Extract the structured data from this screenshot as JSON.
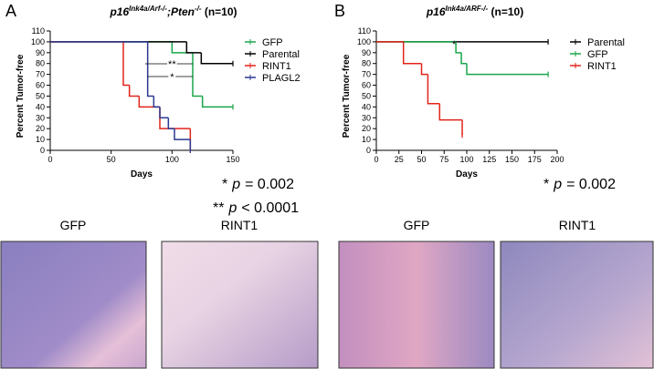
{
  "chart_data": [
    {
      "type": "step",
      "panel_label": "A",
      "title": [
        "p16",
        "Ink4a/Arf-/-",
        ";Pten",
        "-/-",
        " (n=10)"
      ],
      "x_label": "Days",
      "y_label": "Percent Tumor-free",
      "xlim": [
        0,
        150
      ],
      "xticks": [
        0,
        50,
        100,
        150
      ],
      "ylim": [
        0,
        110
      ],
      "yticks": [
        0,
        10,
        20,
        30,
        40,
        50,
        60,
        70,
        80,
        90,
        100,
        110
      ],
      "legend": "right",
      "series": [
        {
          "name": "GFP",
          "color": "#1aa64a",
          "x": [
            0,
            100,
            117,
            125,
            150
          ],
          "values": [
            100,
            90,
            50,
            40,
            40
          ]
        },
        {
          "name": "Parental",
          "color": "#000000",
          "x": [
            0,
            112,
            124,
            150
          ],
          "values": [
            100,
            90,
            80,
            80
          ]
        },
        {
          "name": "RINT1",
          "color": "#e2231a",
          "x": [
            0,
            60,
            65,
            73,
            90,
            115
          ],
          "values": [
            100,
            60,
            50,
            40,
            20,
            0
          ]
        },
        {
          "name": "PLAGL2",
          "color": "#2b3990",
          "x": [
            0,
            80,
            85,
            90,
            97,
            102,
            115
          ],
          "values": [
            100,
            50,
            40,
            30,
            20,
            10,
            0
          ]
        }
      ],
      "annotations": [
        "**",
        "*"
      ],
      "pvalues": [
        [
          "*",
          "p",
          "= 0.002"
        ],
        [
          "**",
          "p",
          "< 0.0001"
        ]
      ]
    },
    {
      "type": "step",
      "panel_label": "B",
      "title": [
        "p16",
        "Ink4a/ARF-/-",
        " (n=10)"
      ],
      "x_label": "Days",
      "y_label": "Percent Tumor-free",
      "xlim": [
        0,
        200
      ],
      "xticks": [
        0,
        25,
        50,
        75,
        100,
        125,
        150,
        175,
        200
      ],
      "ylim": [
        0,
        110
      ],
      "yticks": [
        0,
        10,
        20,
        30,
        40,
        50,
        60,
        70,
        80,
        90,
        100,
        110
      ],
      "legend": "right",
      "series": [
        {
          "name": "Parental",
          "color": "#000000",
          "x": [
            0,
            190
          ],
          "values": [
            100,
            100
          ]
        },
        {
          "name": "GFP",
          "color": "#1aa64a",
          "x": [
            0,
            88,
            94,
            100,
            190
          ],
          "values": [
            100,
            90,
            80,
            70,
            70
          ]
        },
        {
          "name": "RINT1",
          "color": "#e2231a",
          "x": [
            0,
            30,
            50,
            57,
            70,
            95
          ],
          "values": [
            100,
            80,
            70,
            43,
            28,
            14
          ]
        }
      ],
      "annotations": [
        "*"
      ],
      "pvalues": [
        [
          "*",
          "p",
          "= 0.002"
        ]
      ]
    }
  ],
  "images": [
    "GFP",
    "RINT1",
    "GFP",
    "RINT1"
  ]
}
